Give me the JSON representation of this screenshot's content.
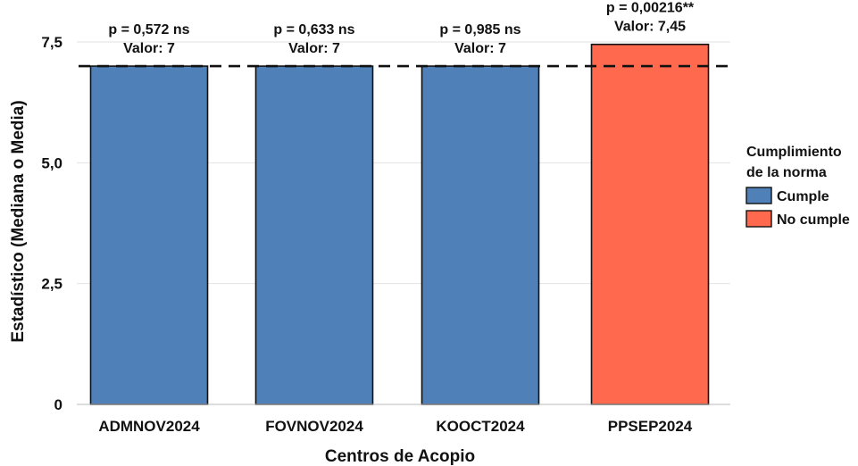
{
  "chart_data": {
    "type": "bar",
    "xlabel": "Centros de Acopio",
    "ylabel": "Estadístico (Mediana o Media)",
    "ylim": [
      0,
      7.5
    ],
    "yticks": [
      0,
      2.5,
      5,
      7.5
    ],
    "ytick_labels": [
      "0",
      "2,5",
      "5,0",
      "7,5"
    ],
    "grid": true,
    "categories": [
      "ADMNOV2024",
      "FOVNOV2024",
      "KOOCT2024",
      "PPSEP2024"
    ],
    "values": [
      7,
      7,
      7,
      7.45
    ],
    "groups": [
      "Cumple",
      "Cumple",
      "Cumple",
      "No cumple"
    ],
    "annotations": [
      {
        "p_text": "p = 0,572 ns",
        "value_text": "Valor: 7"
      },
      {
        "p_text": "p = 0,633 ns",
        "value_text": "Valor: 7"
      },
      {
        "p_text": "p = 0,985 ns",
        "value_text": "Valor: 7"
      },
      {
        "p_text": "p = 0,00216**",
        "value_text": "Valor: 7,45"
      }
    ],
    "reference_line": {
      "value": 7,
      "style": "dashed"
    },
    "legend": {
      "title_lines": [
        "Cumplimiento",
        "de la norma"
      ],
      "placement": "right",
      "entries": [
        {
          "label": "Cumple",
          "color": "#4f81b8"
        },
        {
          "label": "No cumple",
          "color": "#ff6a4f"
        }
      ]
    },
    "colors": {
      "Cumple": "#4f81b8",
      "No cumple": "#ff6a4f",
      "bar_outline": "#111111",
      "reference_line": "#111111",
      "grid": "#e2e2e2"
    }
  }
}
